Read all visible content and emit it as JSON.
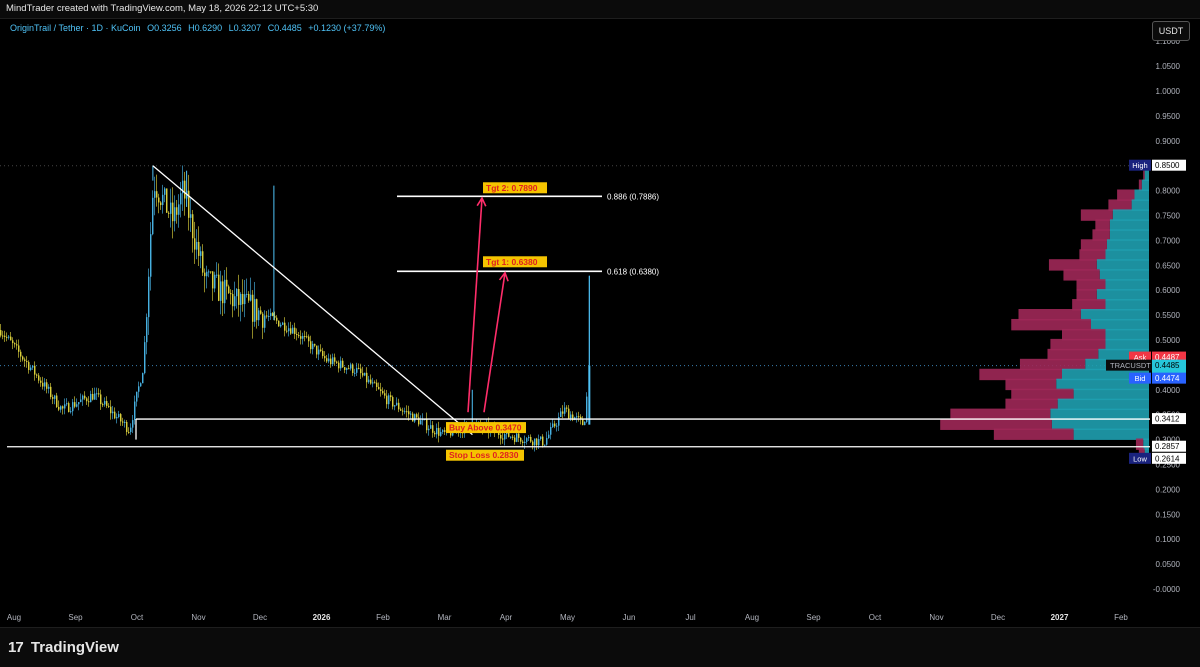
{
  "header": {
    "credit": "MindTrader created with TradingView.com, May 18, 2026 22:12 UTC+5:30",
    "legend_symbol": "OriginTrail / Tether · 1D · KuCoin",
    "legend_o": "O0.3256",
    "legend_h": "H0.6290",
    "legend_l": "L0.3207",
    "legend_c": "C0.4485",
    "legend_chg": "+0.1230 (+37.79%)",
    "currency": "USDT"
  },
  "footer": {
    "brand_logo": "17",
    "brand_name": "TradingView"
  },
  "colors": {
    "bull": "#4fc3f7",
    "bear": "#f0e442",
    "line": "#ffffff",
    "arrow": "#ff2d6a",
    "vp_up": "#1fa0b0",
    "vp_down": "#a02858",
    "label_bg": "#f5c400",
    "label_text": "#e02020"
  },
  "chart_data": {
    "type": "candlestick",
    "symbol": "TRACUSDT",
    "timeframe": "1D",
    "exchange": "KuCoin",
    "x_ticks": [
      "Aug",
      "Sep",
      "Oct",
      "Nov",
      "Dec",
      "2026",
      "Feb",
      "Mar",
      "Apr",
      "May",
      "Jun",
      "Jul",
      "Aug",
      "Sep",
      "Oct",
      "Nov",
      "Dec",
      "2027",
      "Feb"
    ],
    "y_ticks": [
      "1.1000",
      "1.0500",
      "1.0000",
      "0.9500",
      "0.9000",
      "0.8500",
      "0.8000",
      "0.7500",
      "0.7000",
      "0.6500",
      "0.6000",
      "0.5500",
      "0.5000",
      "0.4500",
      "0.4000",
      "0.3500",
      "0.3000",
      "0.2500",
      "0.2000",
      "0.1500",
      "0.1000",
      "0.0500",
      "-0.0000"
    ],
    "ylim": [
      -0.01,
      1.11
    ],
    "price_path": [
      {
        "date": "2025-07-25",
        "price": 0.52
      },
      {
        "date": "2025-08-10",
        "price": 0.44
      },
      {
        "date": "2025-08-25",
        "price": 0.36
      },
      {
        "date": "2025-09-10",
        "price": 0.39
      },
      {
        "date": "2025-09-28",
        "price": 0.32
      },
      {
        "date": "2025-10-05",
        "price": 0.45
      },
      {
        "date": "2025-10-10",
        "price": 0.82
      },
      {
        "date": "2025-10-20",
        "price": 0.74
      },
      {
        "date": "2025-10-25",
        "price": 0.8
      },
      {
        "date": "2025-11-05",
        "price": 0.62
      },
      {
        "date": "2025-11-20",
        "price": 0.58
      },
      {
        "date": "2025-12-05",
        "price": 0.55
      },
      {
        "date": "2025-12-20",
        "price": 0.52
      },
      {
        "date": "2026-01-05",
        "price": 0.46
      },
      {
        "date": "2026-01-20",
        "price": 0.44
      },
      {
        "date": "2026-02-05",
        "price": 0.38
      },
      {
        "date": "2026-02-20",
        "price": 0.34
      },
      {
        "date": "2026-03-05",
        "price": 0.31
      },
      {
        "date": "2026-03-20",
        "price": 0.33
      },
      {
        "date": "2026-04-05",
        "price": 0.31
      },
      {
        "date": "2026-04-25",
        "price": 0.295
      },
      {
        "date": "2026-05-05",
        "price": 0.36
      },
      {
        "date": "2026-05-15",
        "price": 0.33
      },
      {
        "date": "2026-05-18",
        "price": 0.4485
      }
    ],
    "wick_highs": [
      {
        "date": "2025-10-10",
        "price": 0.85
      },
      {
        "date": "2025-10-27",
        "price": 0.84
      },
      {
        "date": "2025-12-10",
        "price": 0.81
      },
      {
        "date": "2026-03-20",
        "price": 0.4
      },
      {
        "date": "2026-05-18",
        "price": 0.629
      }
    ],
    "levels": {
      "resistance_line": 0.3412,
      "support_line": 0.2857,
      "fib_886": 0.7886,
      "fib_618": 0.638,
      "high": 0.85,
      "low": 0.2614,
      "ask": 0.4487,
      "last": 0.4485,
      "bid": 0.4474
    },
    "trendline": {
      "start": {
        "date": "2025-10-10",
        "price": 0.85
      },
      "end": {
        "date": "2026-03-10",
        "price": 0.3
      }
    },
    "annotations": {
      "buy": "Buy Above 0.3470",
      "stop": "Stop Loss 0.2830",
      "tgt1": "Tgt 1: 0.6380",
      "tgt2": "Tgt 2: 0.7890",
      "fib_886_label": "0.886 (0.7886)",
      "fib_618_label": "0.618 (0.6380)"
    },
    "price_labels": {
      "high_tag": "High",
      "high_value": "0.8500",
      "ask_tag": "Ask",
      "ask_value": "0.4487",
      "symbol_tag": "TRACUSDT",
      "last_value": "0.4485",
      "countdown": "07:17:13",
      "bid_tag": "Bid",
      "bid_value": "0.4474",
      "resistance_value": "0.3412",
      "support_value": "0.2857",
      "low_tag": "Low",
      "low_value": "0.2614"
    },
    "volume_profile": [
      {
        "price": 0.83,
        "up": 0.03,
        "down": 0.01
      },
      {
        "price": 0.81,
        "up": 0.05,
        "down": 0.02
      },
      {
        "price": 0.79,
        "up": 0.1,
        "down": 0.12
      },
      {
        "price": 0.77,
        "up": 0.12,
        "down": 0.16
      },
      {
        "price": 0.75,
        "up": 0.25,
        "down": 0.22
      },
      {
        "price": 0.73,
        "up": 0.27,
        "down": 0.1
      },
      {
        "price": 0.71,
        "up": 0.27,
        "down": 0.12
      },
      {
        "price": 0.69,
        "up": 0.29,
        "down": 0.18
      },
      {
        "price": 0.67,
        "up": 0.3,
        "down": 0.18
      },
      {
        "price": 0.65,
        "up": 0.36,
        "down": 0.33
      },
      {
        "price": 0.63,
        "up": 0.34,
        "down": 0.25
      },
      {
        "price": 0.61,
        "up": 0.3,
        "down": 0.2
      },
      {
        "price": 0.59,
        "up": 0.36,
        "down": 0.14
      },
      {
        "price": 0.57,
        "up": 0.3,
        "down": 0.23
      },
      {
        "price": 0.55,
        "up": 0.47,
        "down": 0.43
      },
      {
        "price": 0.53,
        "up": 0.4,
        "down": 0.55
      },
      {
        "price": 0.51,
        "up": 0.3,
        "down": 0.3
      },
      {
        "price": 0.49,
        "up": 0.3,
        "down": 0.38
      },
      {
        "price": 0.47,
        "up": 0.35,
        "down": 0.35
      },
      {
        "price": 0.45,
        "up": 0.44,
        "down": 0.45
      },
      {
        "price": 0.43,
        "up": 0.6,
        "down": 0.57
      },
      {
        "price": 0.41,
        "up": 0.64,
        "down": 0.35
      },
      {
        "price": 0.39,
        "up": 0.52,
        "down": 0.43
      },
      {
        "price": 0.37,
        "up": 0.63,
        "down": 0.36
      },
      {
        "price": 0.35,
        "up": 0.68,
        "down": 0.69
      },
      {
        "price": 0.33,
        "up": 0.67,
        "down": 0.77
      },
      {
        "price": 0.31,
        "up": 0.52,
        "down": 0.55
      },
      {
        "price": 0.29,
        "up": 0.04,
        "down": 0.05
      },
      {
        "price": 0.27,
        "up": 0.03,
        "down": 0.04
      }
    ]
  }
}
